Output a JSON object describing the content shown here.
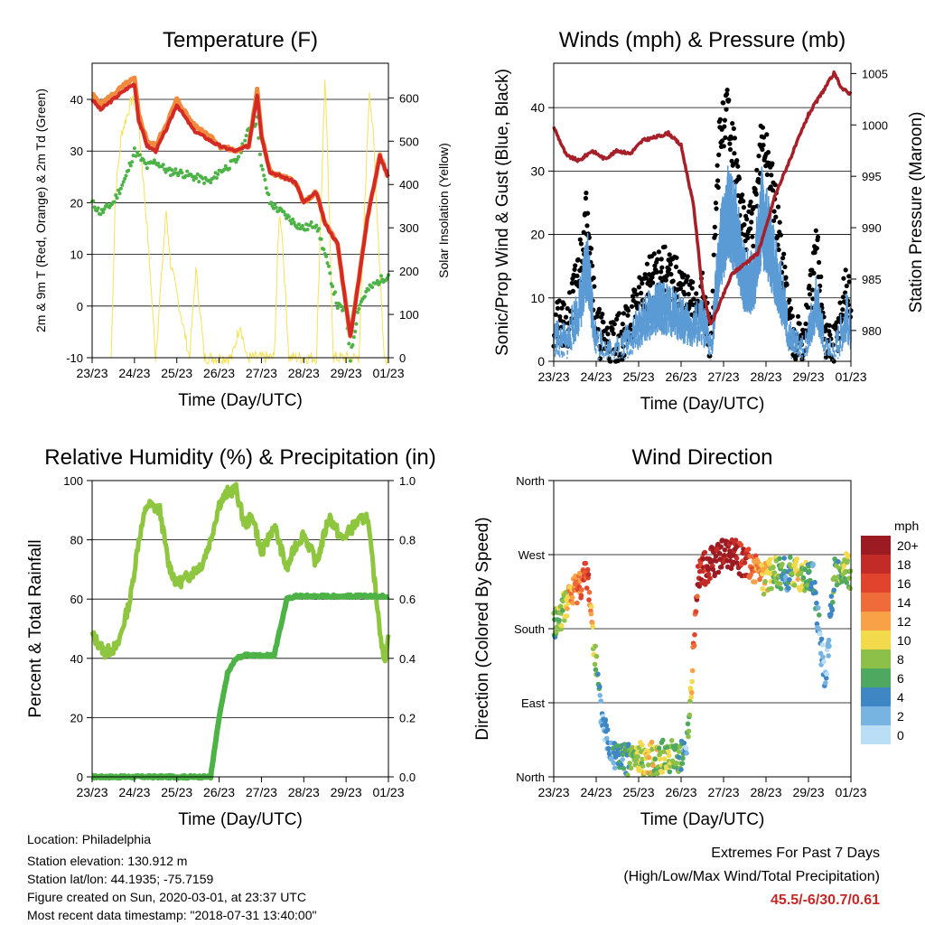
{
  "colors": {
    "temp_red": "#d42a26",
    "temp_orange": "#f08a3c",
    "dew_green": "#4db347",
    "solar_yellow": "#f5e25a",
    "gust_black": "#000000",
    "wind_blue": "#5b9bd5",
    "pressure_maroon": "#a52028",
    "rh_lightgreen": "#8ec63f",
    "precip_green": "#4db347",
    "highlight_red": "#c62828"
  },
  "x_ticks": [
    "23/23",
    "24/23",
    "25/23",
    "26/23",
    "27/23",
    "28/23",
    "29/23",
    "01/23"
  ],
  "x_label": "Time (Day/UTC)",
  "chart_data": [
    {
      "type": "line",
      "title": "Temperature (F)",
      "xlabel": "Time (Day/UTC)",
      "ylabel": "2m & 9m T (Red, Orange) & 2m Td (Green)",
      "ylabel_right": "Solar Insolation (Yellow)",
      "ylim": [
        -10,
        47
      ],
      "yticks": [
        -10,
        0,
        10,
        20,
        30,
        40
      ],
      "ylim_right": [
        0,
        680
      ],
      "yticks_right": [
        0,
        100,
        200,
        300,
        400,
        500,
        600
      ],
      "x": [
        0,
        0.2,
        0.5,
        0.8,
        1,
        1.1,
        1.3,
        1.5,
        1.8,
        2,
        2.4,
        2.8,
        3,
        3.4,
        3.7,
        3.9,
        4,
        4.2,
        4.5,
        4.8,
        5,
        5.3,
        5.5,
        5.8,
        6,
        6.1,
        6.3,
        6.5,
        6.8,
        7
      ],
      "series": [
        {
          "values": [
            40,
            38,
            40,
            42,
            43,
            36,
            31,
            30,
            35,
            39,
            34,
            32,
            31,
            30,
            31,
            41,
            33,
            26,
            25,
            24,
            20,
            22,
            16,
            12,
            0,
            -6,
            5,
            17,
            29,
            25
          ]
        },
        {
          "values": [
            41,
            39,
            41,
            43,
            44,
            37,
            32,
            31,
            36,
            40,
            35,
            33,
            31,
            30,
            31,
            42,
            33,
            26,
            25,
            24,
            20,
            22,
            16,
            12,
            0,
            -6,
            5,
            17,
            29,
            25
          ]
        },
        {
          "values": [
            20,
            18,
            20,
            25,
            30,
            29,
            27,
            28,
            26,
            26,
            25,
            24,
            26,
            28,
            34,
            36,
            27,
            20,
            18,
            16,
            15,
            16,
            10,
            0,
            -1,
            -10,
            0,
            3,
            5,
            6
          ]
        }
      ],
      "solar": {
        "x": [
          0.45,
          0.55,
          0.7,
          0.95,
          1.1,
          1.3,
          1.5,
          1.75,
          1.85,
          2.3,
          2.45,
          2.5,
          2.65,
          3.3,
          3.45,
          3.5,
          3.65,
          4.3,
          4.42,
          4.48,
          4.65,
          5.3,
          5.5,
          5.55,
          5.7,
          6.3,
          6.55,
          6.65,
          6.9,
          7.0
        ],
        "values": [
          0,
          380,
          520,
          600,
          540,
          300,
          0,
          340,
          220,
          0,
          200,
          160,
          0,
          0,
          60,
          80,
          0,
          0,
          330,
          300,
          0,
          0,
          650,
          500,
          0,
          0,
          620,
          500,
          0,
          0
        ]
      }
    },
    {
      "type": "scatter",
      "title": "Winds (mph) & Pressure (mb)",
      "xlabel": "Time (Day/UTC)",
      "ylabel": "Sonic/Prop Wind & Gust (Blue, Black)",
      "ylabel_right": "Station Pressure (Maroon)",
      "ylim": [
        0,
        47
      ],
      "yticks": [
        0,
        10,
        20,
        30,
        40
      ],
      "ylim_right": [
        977,
        1006
      ],
      "yticks_right": [
        980,
        985,
        990,
        995,
        1000,
        1005
      ],
      "x": [
        0,
        0.3,
        0.6,
        0.8,
        1,
        1.3,
        1.6,
        1.9,
        2.2,
        2.5,
        2.8,
        3,
        3.2,
        3.5,
        3.7,
        3.9,
        4.1,
        4.3,
        4.5,
        4.7,
        4.9,
        5.1,
        5.3,
        5.6,
        5.9,
        6.2,
        6.4,
        6.6,
        6.9,
        7
      ],
      "series": [
        {
          "name": "",
          "values": [
            6,
            5,
            15,
            25,
            5,
            3,
            4,
            8,
            12,
            15,
            13,
            12,
            9,
            10,
            3,
            35,
            40,
            30,
            20,
            22,
            35,
            30,
            20,
            5,
            3,
            18,
            3,
            2,
            12,
            8
          ]
        },
        {
          "name": "",
          "values": [
            4,
            3,
            10,
            18,
            3,
            1,
            2,
            5,
            8,
            10,
            9,
            8,
            6,
            7,
            2,
            20,
            28,
            25,
            15,
            15,
            28,
            22,
            15,
            3,
            1,
            12,
            1,
            1,
            8,
            5
          ]
        }
      ],
      "pressure": {
        "x": [
          0,
          0.3,
          0.6,
          0.9,
          1.2,
          1.5,
          1.8,
          2.1,
          2.4,
          2.7,
          3,
          3.3,
          3.5,
          3.7,
          3.9,
          4.2,
          4.5,
          4.8,
          5,
          5.2,
          5.5,
          5.8,
          6,
          6.3,
          6.6,
          6.8,
          7
        ],
        "values": [
          999.8,
          997,
          996.5,
          997.5,
          996.7,
          997.5,
          997.2,
          998.5,
          998.8,
          999.2,
          998,
          992,
          984,
          980.5,
          982.5,
          985.5,
          986.5,
          987.5,
          990,
          993,
          996,
          999,
          1001,
          1003,
          1005,
          1003.5,
          1003
        ]
      }
    },
    {
      "type": "line",
      "title": "Relative Humidity (%) & Precipitation (in)",
      "xlabel": "Time (Day/UTC)",
      "ylabel": "Percent & Total Rainfall",
      "ylim": [
        0,
        100
      ],
      "yticks": [
        0,
        20,
        40,
        60,
        80,
        100
      ],
      "ylim_right": [
        0,
        1.0
      ],
      "yticks_right": [
        "0.0",
        "0.2",
        "0.4",
        "0.6",
        "0.8",
        "1.0"
      ],
      "x": [
        0,
        0.3,
        0.6,
        0.9,
        1.1,
        1.3,
        1.6,
        1.8,
        2,
        2.3,
        2.6,
        2.8,
        3,
        3.2,
        3.4,
        3.6,
        3.8,
        4,
        4.3,
        4.6,
        4.8,
        5,
        5.3,
        5.6,
        5.9,
        6.2,
        6.5,
        6.8,
        6.9,
        7
      ],
      "series": [
        {
          "values": [
            48,
            42,
            44,
            60,
            80,
            92,
            90,
            72,
            65,
            68,
            72,
            80,
            92,
            96,
            97,
            85,
            88,
            75,
            85,
            70,
            78,
            82,
            72,
            88,
            80,
            85,
            88,
            50,
            38,
            48
          ]
        },
        {
          "values": [
            0,
            0,
            0,
            0,
            0,
            0,
            0,
            0,
            0,
            0,
            0,
            0,
            0.2,
            0.35,
            0.4,
            0.41,
            0.41,
            0.41,
            0.41,
            0.6,
            0.61,
            0.61,
            0.61,
            0.61,
            0.61,
            0.61,
            0.61,
            0.61,
            0.61,
            0.61
          ]
        }
      ]
    },
    {
      "type": "scatter",
      "title": "Wind Direction",
      "xlabel": "Time (Day/UTC)",
      "ylabel": "Direction (Colored By Speed)",
      "y_categories": [
        "North",
        "East",
        "South",
        "West",
        "North"
      ],
      "x": [
        0,
        0.2,
        0.4,
        0.6,
        0.8,
        1.1,
        1.3,
        1.6,
        1.8,
        2.2,
        2.6,
        3,
        3.1,
        3.25,
        3.4,
        3.5,
        3.7,
        3.9,
        4.2,
        4.5,
        4.7,
        4.9,
        5.2,
        5.5,
        5.7,
        5.9,
        6.1,
        6.4,
        6.6,
        6.9,
        7
      ],
      "direction_deg": [
        185,
        200,
        220,
        235,
        245,
        80,
        40,
        20,
        22,
        22,
        25,
        25,
        25,
        115,
        245,
        250,
        260,
        268,
        272,
        260,
        255,
        240,
        250,
        245,
        250,
        240,
        245,
        110,
        245,
        255,
        245
      ],
      "speed_mph": [
        6,
        8,
        12,
        14,
        16,
        2,
        3,
        5,
        6,
        10,
        8,
        6,
        2,
        12,
        18,
        18,
        20,
        20,
        20,
        18,
        14,
        12,
        8,
        4,
        10,
        8,
        4,
        2,
        6,
        8,
        6
      ],
      "legend_title": "mph",
      "legend_labels": [
        "20+",
        "18",
        "16",
        "14",
        "12",
        "10",
        "8",
        "6",
        "4",
        "2",
        "0"
      ],
      "legend_colors": [
        "#9c1b22",
        "#c22b27",
        "#e2432c",
        "#f06b3a",
        "#f9a147",
        "#f3da4c",
        "#8cc049",
        "#4fa860",
        "#3f86c4",
        "#77b4e2",
        "#b9def5"
      ]
    }
  ],
  "footer": {
    "location": "Location: Philadelphia",
    "elevation": "Station elevation: 130.912 m",
    "latlon": "Station lat/lon: 44.1935; -75.7159",
    "created": "Figure created on Sun, 2020-03-01, at 23:37 UTC",
    "timestamp": "Most recent data timestamp: \"2018-07-31 13:40:00\""
  },
  "extremes": {
    "title": "Extremes For Past 7 Days",
    "subtitle": "(High/Low/Max Wind/Total Precipitation)",
    "values": "45.5/-6/30.7/0.61"
  }
}
